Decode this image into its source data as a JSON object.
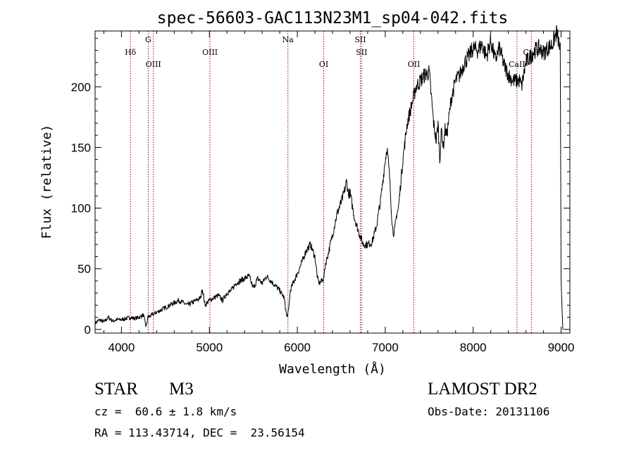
{
  "chart_data": {
    "type": "line",
    "title": "spec-56603-GAC113N23M1_sp04-042.fits",
    "xlabel": "Wavelength (Å)",
    "ylabel": "Flux (relative)",
    "xlim": [
      3700,
      9100
    ],
    "ylim": [
      -3,
      246
    ],
    "x_ticks": [
      4000,
      5000,
      6000,
      7000,
      8000,
      9000
    ],
    "y_ticks": [
      0,
      50,
      100,
      150,
      200
    ],
    "grid": false,
    "line_color": "#000000",
    "marker_color": "#a00000",
    "series": [
      {
        "x": [
          3700,
          3750,
          3800,
          3850,
          3900,
          3950,
          4000,
          4050,
          4100,
          4150,
          4200,
          4250,
          4280,
          4300,
          4350,
          4400,
          4450,
          4500,
          4550,
          4600,
          4650,
          4700,
          4750,
          4800,
          4850,
          4900,
          4920,
          4950,
          5000,
          5050,
          5100,
          5150,
          5200,
          5250,
          5300,
          5350,
          5400,
          5450,
          5500,
          5550,
          5600,
          5650,
          5700,
          5750,
          5800,
          5850,
          5880,
          5900,
          5920,
          5950,
          6000,
          6050,
          6100,
          6150,
          6200,
          6230,
          6250,
          6300,
          6320,
          6350,
          6400,
          6450,
          6500,
          6530,
          6560,
          6580,
          6600,
          6650,
          6700,
          6750,
          6800,
          6850,
          6900,
          6950,
          7000,
          7020,
          7050,
          7080,
          7100,
          7130,
          7150,
          7200,
          7250,
          7300,
          7350,
          7400,
          7450,
          7500,
          7550,
          7580,
          7600,
          7620,
          7640,
          7660,
          7680,
          7700,
          7750,
          7800,
          7850,
          7900,
          7950,
          8000,
          8050,
          8100,
          8150,
          8200,
          8250,
          8300,
          8350,
          8400,
          8450,
          8500,
          8530,
          8550,
          8600,
          8650,
          8700,
          8750,
          8800,
          8850,
          8900,
          8950,
          8990,
          9000,
          9020
        ],
        "values": [
          5,
          8,
          6,
          10,
          7,
          8,
          8,
          9,
          10,
          9,
          10,
          12,
          2,
          10,
          12,
          14,
          16,
          18,
          20,
          22,
          24,
          22,
          20,
          22,
          24,
          26,
          34,
          20,
          24,
          26,
          28,
          24,
          30,
          32,
          38,
          40,
          42,
          44,
          34,
          42,
          38,
          44,
          40,
          36,
          32,
          26,
          10,
          15,
          32,
          38,
          46,
          55,
          65,
          70,
          60,
          42,
          38,
          42,
          54,
          62,
          78,
          95,
          105,
          112,
          122,
          112,
          112,
          92,
          80,
          70,
          70,
          72,
          85,
          108,
          140,
          150,
          125,
          85,
          78,
          95,
          100,
          140,
          170,
          185,
          200,
          205,
          210,
          212,
          170,
          155,
          170,
          140,
          165,
          150,
          165,
          160,
          190,
          205,
          210,
          220,
          225,
          232,
          230,
          235,
          225,
          238,
          222,
          232,
          218,
          210,
          205,
          205,
          205,
          200,
          220,
          225,
          230,
          232,
          228,
          232,
          235,
          245,
          230,
          40,
          0
        ]
      }
    ],
    "markers": [
      {
        "x": 4102,
        "label": "Hδ",
        "row": 1
      },
      {
        "x": 4304,
        "label": "G",
        "row": 0
      },
      {
        "x": 4363,
        "label": "OIII",
        "row": 2
      },
      {
        "x": 5007,
        "label": "OIII",
        "row": 1
      },
      {
        "x": 5893,
        "label": "Na",
        "row": 0
      },
      {
        "x": 6300,
        "label": "OI",
        "row": 2
      },
      {
        "x": 6716,
        "label": "SII",
        "row": 0
      },
      {
        "x": 6731,
        "label": "SII",
        "row": 1
      },
      {
        "x": 7325,
        "label": "OII",
        "row": 2
      },
      {
        "x": 8498,
        "label": "CaII",
        "row": 2
      },
      {
        "x": 8662,
        "label": "CaII",
        "row": 1
      }
    ]
  },
  "info": {
    "object_class": "STAR",
    "subclass": "M3",
    "survey": "LAMOST DR2",
    "redshift": "cz =  60.6 ± 1.8 km/s",
    "obs_date": "Obs-Date: 20131106",
    "coords": "RA = 113.43714, DEC =  23.56154"
  }
}
